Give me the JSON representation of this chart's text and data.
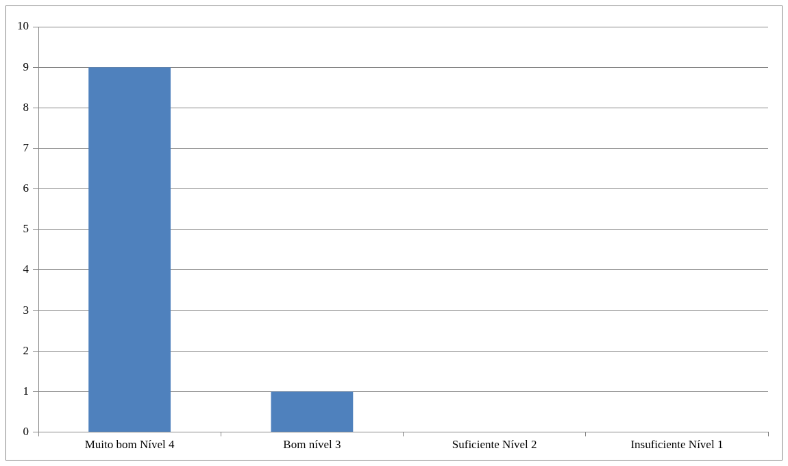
{
  "chart_data": {
    "type": "bar",
    "categories": [
      "Muito bom Nível 4",
      "Bom nível 3",
      "Suficiente Nível 2",
      "Insuficiente Nível 1"
    ],
    "values": [
      9,
      1,
      0,
      0
    ],
    "color": "#4f81bd",
    "ylim": [
      0,
      10
    ],
    "yticks": [
      0,
      1,
      2,
      3,
      4,
      5,
      6,
      7,
      8,
      9,
      10
    ],
    "grid": "y",
    "legend": false
  }
}
